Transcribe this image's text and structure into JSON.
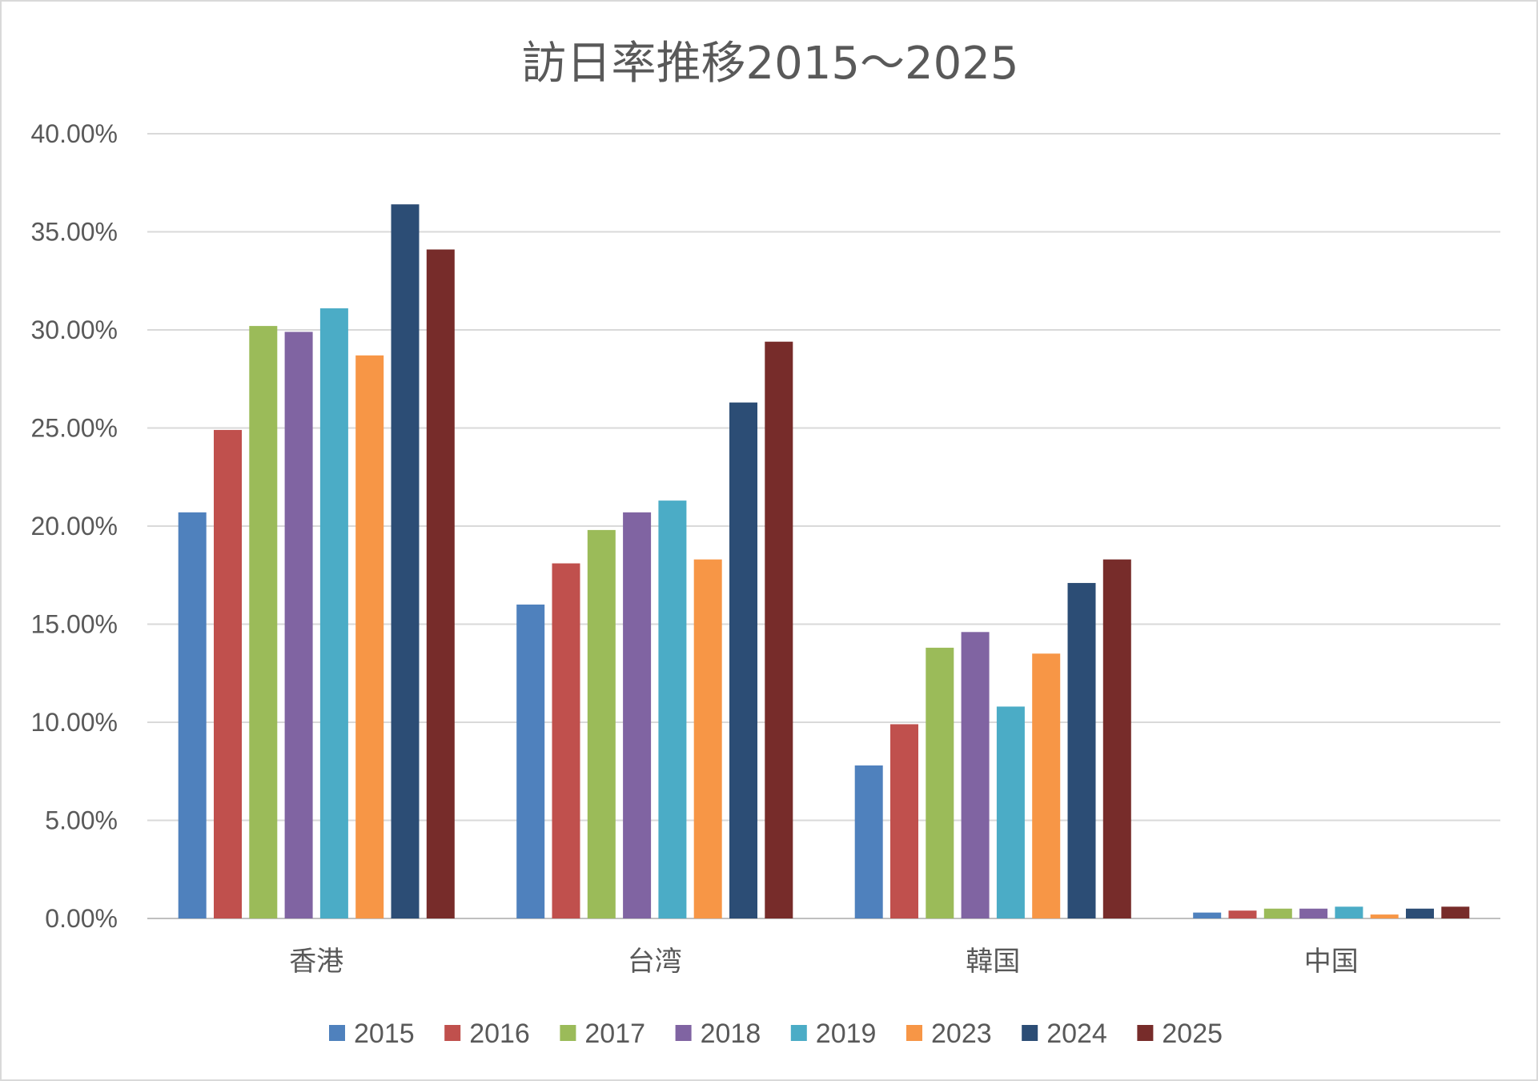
{
  "chart_data": {
    "type": "bar",
    "title": "訪日率推移2015～2025",
    "xlabel": "",
    "ylabel": "",
    "categories": [
      "香港",
      "台湾",
      "韓国",
      "中国"
    ],
    "ylim": [
      0,
      0.4
    ],
    "yticks": [
      0,
      0.05,
      0.1,
      0.15,
      0.2,
      0.25,
      0.3,
      0.35,
      0.4
    ],
    "ytick_labels": [
      "0.00%",
      "5.00%",
      "10.00%",
      "15.00%",
      "20.00%",
      "25.00%",
      "30.00%",
      "35.00%",
      "40.00%"
    ],
    "grid": true,
    "legend_position": "bottom",
    "series": [
      {
        "name": "2015",
        "color": "#4f81bd",
        "values": [
          0.207,
          0.16,
          0.078,
          0.003
        ]
      },
      {
        "name": "2016",
        "color": "#c0504d",
        "values": [
          0.249,
          0.181,
          0.099,
          0.004
        ]
      },
      {
        "name": "2017",
        "color": "#9bbb59",
        "values": [
          0.302,
          0.198,
          0.138,
          0.005
        ]
      },
      {
        "name": "2018",
        "color": "#8064a2",
        "values": [
          0.299,
          0.207,
          0.146,
          0.005
        ]
      },
      {
        "name": "2019",
        "color": "#4bacc6",
        "values": [
          0.311,
          0.213,
          0.108,
          0.006
        ]
      },
      {
        "name": "2023",
        "color": "#f79646",
        "values": [
          0.287,
          0.183,
          0.135,
          0.002
        ]
      },
      {
        "name": "2024",
        "color": "#2c4d75",
        "values": [
          0.364,
          0.263,
          0.171,
          0.005
        ]
      },
      {
        "name": "2025",
        "color": "#772c2a",
        "values": [
          0.341,
          0.294,
          0.183,
          0.006
        ]
      }
    ]
  }
}
